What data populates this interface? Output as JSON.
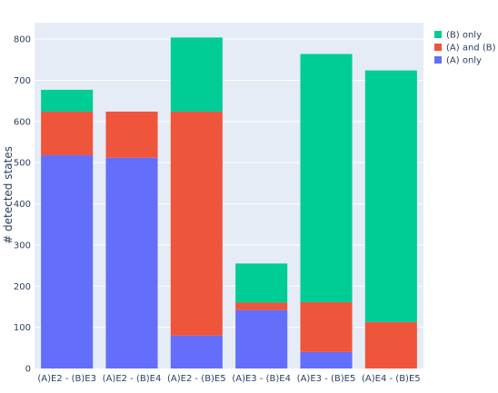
{
  "chart_data": {
    "type": "bar",
    "barmode": "stack",
    "title": "",
    "xlabel": "",
    "ylabel": "# detected states",
    "ylim": [
      0,
      840
    ],
    "yticks": [
      0,
      100,
      200,
      300,
      400,
      500,
      600,
      700,
      800
    ],
    "grid": true,
    "legend_position": "top-right",
    "plot_background": "#e5ecf6",
    "categories": [
      "(A)E2 - (B)E3",
      "(A)E2 - (B)E4",
      "(A)E2 - (B)E5",
      "(A)E3 - (B)E4",
      "(A)E3 - (B)E5",
      "(A)E4 - (B)E5"
    ],
    "series": [
      {
        "name": "(A) only",
        "color": "#636efa",
        "values": [
          518,
          512,
          80,
          142,
          40,
          0
        ]
      },
      {
        "name": "(A) and (B)",
        "color": "#ef553b",
        "values": [
          106,
          112,
          544,
          18,
          121,
          113
        ]
      },
      {
        "name": "(B) only",
        "color": "#00cc96",
        "values": [
          53,
          0,
          180,
          95,
          603,
          611
        ]
      }
    ],
    "legend_order": [
      "(B) only",
      "(A) and (B)",
      "(A) only"
    ]
  }
}
